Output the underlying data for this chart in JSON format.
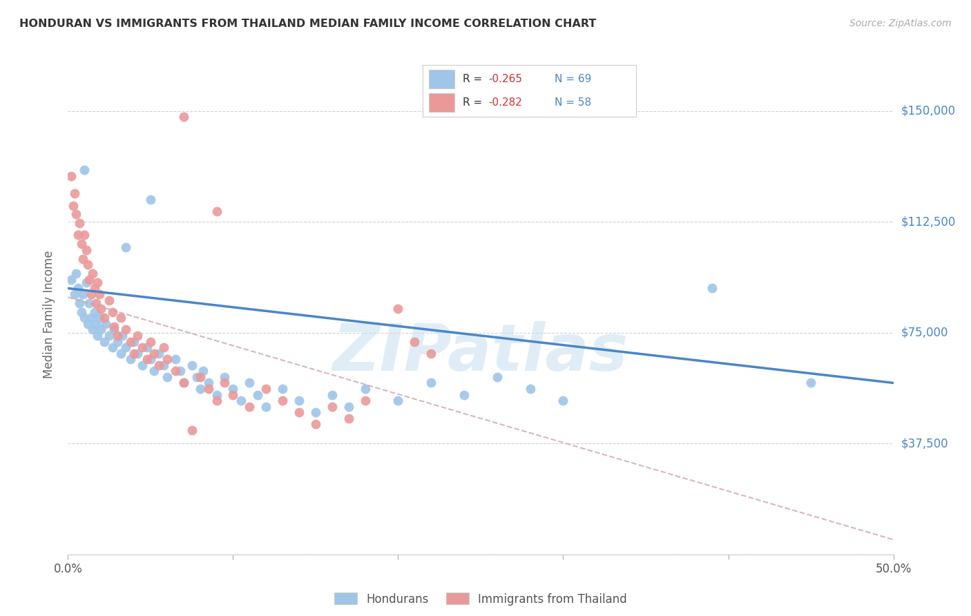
{
  "title": "HONDURAN VS IMMIGRANTS FROM THAILAND MEDIAN FAMILY INCOME CORRELATION CHART",
  "source": "Source: ZipAtlas.com",
  "ylabel": "Median Family Income",
  "yticks": [
    0,
    37500,
    75000,
    112500,
    150000
  ],
  "ytick_labels": [
    "",
    "$37,500",
    "$75,000",
    "$112,500",
    "$150,000"
  ],
  "xlim": [
    0.0,
    0.5
  ],
  "ylim": [
    0,
    162500
  ],
  "watermark": "ZIPatlas",
  "blue_color": "#9fc5e8",
  "pink_color": "#ea9999",
  "blue_line_color": "#4a86c8",
  "pink_line_color": "#d5a0b0",
  "hondurans_label": "Hondurans",
  "thailand_label": "Immigrants from Thailand",
  "blue_scatter": [
    [
      0.002,
      93000
    ],
    [
      0.004,
      88000
    ],
    [
      0.005,
      95000
    ],
    [
      0.006,
      90000
    ],
    [
      0.007,
      85000
    ],
    [
      0.008,
      82000
    ],
    [
      0.009,
      88000
    ],
    [
      0.01,
      80000
    ],
    [
      0.011,
      92000
    ],
    [
      0.012,
      78000
    ],
    [
      0.013,
      85000
    ],
    [
      0.014,
      80000
    ],
    [
      0.015,
      76000
    ],
    [
      0.016,
      82000
    ],
    [
      0.017,
      78000
    ],
    [
      0.018,
      74000
    ],
    [
      0.019,
      80000
    ],
    [
      0.02,
      76000
    ],
    [
      0.022,
      72000
    ],
    [
      0.023,
      78000
    ],
    [
      0.025,
      74000
    ],
    [
      0.027,
      70000
    ],
    [
      0.028,
      76000
    ],
    [
      0.03,
      72000
    ],
    [
      0.032,
      68000
    ],
    [
      0.033,
      74000
    ],
    [
      0.035,
      70000
    ],
    [
      0.038,
      66000
    ],
    [
      0.04,
      72000
    ],
    [
      0.042,
      68000
    ],
    [
      0.045,
      64000
    ],
    [
      0.048,
      70000
    ],
    [
      0.05,
      66000
    ],
    [
      0.052,
      62000
    ],
    [
      0.055,
      68000
    ],
    [
      0.058,
      64000
    ],
    [
      0.06,
      60000
    ],
    [
      0.065,
      66000
    ],
    [
      0.068,
      62000
    ],
    [
      0.07,
      58000
    ],
    [
      0.075,
      64000
    ],
    [
      0.078,
      60000
    ],
    [
      0.08,
      56000
    ],
    [
      0.082,
      62000
    ],
    [
      0.085,
      58000
    ],
    [
      0.09,
      54000
    ],
    [
      0.095,
      60000
    ],
    [
      0.1,
      56000
    ],
    [
      0.105,
      52000
    ],
    [
      0.11,
      58000
    ],
    [
      0.115,
      54000
    ],
    [
      0.12,
      50000
    ],
    [
      0.13,
      56000
    ],
    [
      0.14,
      52000
    ],
    [
      0.15,
      48000
    ],
    [
      0.16,
      54000
    ],
    [
      0.17,
      50000
    ],
    [
      0.18,
      56000
    ],
    [
      0.2,
      52000
    ],
    [
      0.22,
      58000
    ],
    [
      0.24,
      54000
    ],
    [
      0.26,
      60000
    ],
    [
      0.28,
      56000
    ],
    [
      0.3,
      52000
    ],
    [
      0.05,
      120000
    ],
    [
      0.39,
      90000
    ],
    [
      0.45,
      58000
    ],
    [
      0.01,
      130000
    ],
    [
      0.035,
      104000
    ]
  ],
  "pink_scatter": [
    [
      0.002,
      128000
    ],
    [
      0.003,
      118000
    ],
    [
      0.004,
      122000
    ],
    [
      0.005,
      115000
    ],
    [
      0.006,
      108000
    ],
    [
      0.007,
      112000
    ],
    [
      0.008,
      105000
    ],
    [
      0.009,
      100000
    ],
    [
      0.01,
      108000
    ],
    [
      0.011,
      103000
    ],
    [
      0.012,
      98000
    ],
    [
      0.013,
      93000
    ],
    [
      0.014,
      88000
    ],
    [
      0.015,
      95000
    ],
    [
      0.016,
      90000
    ],
    [
      0.017,
      85000
    ],
    [
      0.018,
      92000
    ],
    [
      0.019,
      88000
    ],
    [
      0.02,
      83000
    ],
    [
      0.022,
      80000
    ],
    [
      0.025,
      86000
    ],
    [
      0.027,
      82000
    ],
    [
      0.028,
      77000
    ],
    [
      0.03,
      74000
    ],
    [
      0.032,
      80000
    ],
    [
      0.035,
      76000
    ],
    [
      0.038,
      72000
    ],
    [
      0.04,
      68000
    ],
    [
      0.042,
      74000
    ],
    [
      0.045,
      70000
    ],
    [
      0.048,
      66000
    ],
    [
      0.05,
      72000
    ],
    [
      0.052,
      68000
    ],
    [
      0.055,
      64000
    ],
    [
      0.058,
      70000
    ],
    [
      0.06,
      66000
    ],
    [
      0.065,
      62000
    ],
    [
      0.07,
      58000
    ],
    [
      0.075,
      42000
    ],
    [
      0.08,
      60000
    ],
    [
      0.085,
      56000
    ],
    [
      0.09,
      52000
    ],
    [
      0.095,
      58000
    ],
    [
      0.1,
      54000
    ],
    [
      0.11,
      50000
    ],
    [
      0.12,
      56000
    ],
    [
      0.13,
      52000
    ],
    [
      0.14,
      48000
    ],
    [
      0.15,
      44000
    ],
    [
      0.16,
      50000
    ],
    [
      0.17,
      46000
    ],
    [
      0.18,
      52000
    ],
    [
      0.2,
      83000
    ],
    [
      0.21,
      72000
    ],
    [
      0.22,
      68000
    ],
    [
      0.07,
      148000
    ],
    [
      0.09,
      116000
    ]
  ],
  "blue_trend_x": [
    0.0,
    0.5
  ],
  "blue_trend_y": [
    90000,
    58000
  ],
  "pink_trend_x": [
    0.0,
    0.5
  ],
  "pink_trend_y": [
    87000,
    5000
  ]
}
